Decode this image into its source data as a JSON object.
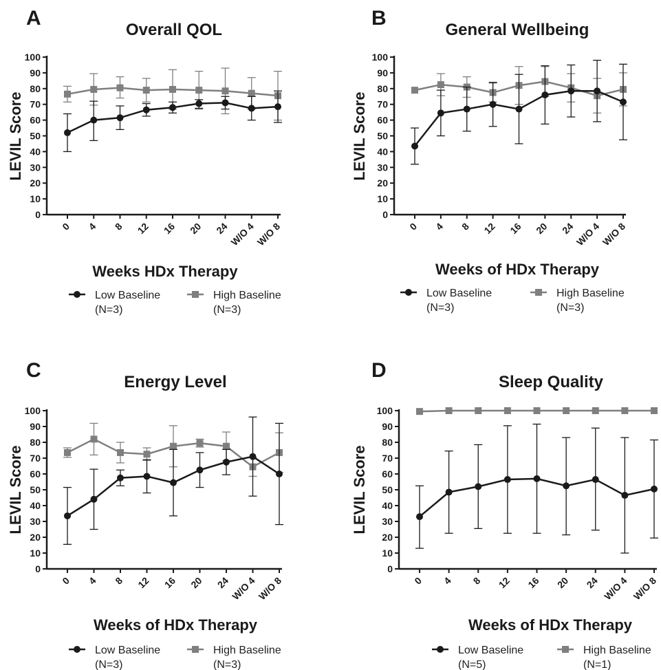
{
  "colors": {
    "low": "#1a1a1a",
    "high": "#7f7f7f"
  },
  "chart_data": [
    {
      "type": "line",
      "panel": "A",
      "title": "Overall QOL",
      "xlabel": "Weeks HDx Therapy",
      "ylabel": "LEVIL Score",
      "categories": [
        "0",
        "4",
        "8",
        "12",
        "16",
        "20",
        "24",
        "W/O 4",
        "W/O 8"
      ],
      "yticks": [
        "0",
        "10",
        "20",
        "30",
        "40",
        "50",
        "60",
        "70",
        "80",
        "90",
        "100"
      ],
      "ylim": [
        0,
        100
      ],
      "legend_position": "bottom",
      "series": [
        {
          "name": "Low Baseline",
          "note": "(N=3)",
          "marker": "circle",
          "values": [
            52,
            60,
            61.5,
            66.5,
            68,
            70.5,
            71,
            67.5,
            68.5
          ],
          "err_low": [
            40,
            47,
            54,
            62.5,
            64.5,
            67.5,
            67,
            60,
            58.5
          ],
          "err_high": [
            64,
            72,
            69,
            70.5,
            71.5,
            73,
            75,
            75,
            78.5
          ]
        },
        {
          "name": "High Baseline",
          "note": "(N=3)",
          "marker": "square",
          "values": [
            76.5,
            79.5,
            80.5,
            79,
            79.5,
            79,
            78.5,
            77,
            75.5
          ],
          "err_low": [
            71.5,
            69.5,
            74,
            71.5,
            67,
            67,
            64,
            67,
            60
          ],
          "err_high": [
            81.5,
            89.5,
            87.5,
            86.5,
            92,
            91,
            93,
            87,
            91
          ]
        }
      ]
    },
    {
      "type": "line",
      "panel": "B",
      "title": "General Wellbeing",
      "xlabel": "Weeks of  HDx Therapy",
      "ylabel": "LEVIL Score",
      "categories": [
        "0",
        "4",
        "8",
        "12",
        "16",
        "20",
        "24",
        "W/O 4",
        "W/O 8"
      ],
      "yticks": [
        "0",
        "10",
        "20",
        "30",
        "40",
        "50",
        "60",
        "70",
        "80",
        "90",
        "100"
      ],
      "ylim": [
        0,
        100
      ],
      "legend_position": "bottom",
      "series": [
        {
          "name": "Low Baseline",
          "note": "(N=3)",
          "marker": "circle",
          "values": [
            43.5,
            64.5,
            67,
            70,
            67,
            76,
            78.5,
            78.5,
            71.5
          ],
          "err_low": [
            32,
            50,
            53,
            56,
            45,
            57.5,
            62,
            59,
            47.5
          ],
          "err_high": [
            55,
            79,
            81,
            84,
            89,
            94.5,
            95,
            98,
            95.5
          ]
        },
        {
          "name": "High Baseline",
          "note": "(N=3)",
          "marker": "square",
          "values": [
            79,
            82.5,
            81,
            77.5,
            82,
            84.5,
            80.5,
            75.5,
            79.5
          ],
          "err_low": [
            79,
            75.5,
            74.5,
            71.5,
            70,
            75,
            71.5,
            64.5,
            69
          ],
          "err_high": [
            79,
            89.5,
            87.5,
            83.5,
            94,
            94,
            89.5,
            86.5,
            90
          ]
        }
      ]
    },
    {
      "type": "line",
      "panel": "C",
      "title": "Energy Level",
      "xlabel": "Weeks of HDx Therapy",
      "ylabel": "LEVIL Score",
      "categories": [
        "0",
        "4",
        "8",
        "12",
        "16",
        "20",
        "24",
        "W/O 4",
        "W/O 8"
      ],
      "yticks": [
        "0",
        "10",
        "20",
        "30",
        "40",
        "50",
        "60",
        "70",
        "80",
        "90",
        "100"
      ],
      "ylim": [
        0,
        100
      ],
      "legend_position": "bottom",
      "series": [
        {
          "name": "Low Baseline",
          "note": "(N=3)",
          "marker": "circle",
          "values": [
            33.5,
            44,
            57.5,
            58.5,
            54.5,
            62.5,
            67.5,
            71,
            60
          ],
          "err_low": [
            15.5,
            25,
            52.5,
            48,
            33.5,
            51.5,
            59.5,
            46,
            28
          ],
          "err_high": [
            51.5,
            63,
            62.5,
            69,
            75.5,
            73.5,
            75.5,
            96,
            92
          ]
        },
        {
          "name": "High Baseline",
          "note": "(N=3)",
          "marker": "square",
          "values": [
            73.5,
            82,
            73.5,
            72.5,
            77.5,
            79.5,
            77.5,
            64.5,
            73.5
          ],
          "err_low": [
            70.5,
            72,
            67,
            68.5,
            64.5,
            77,
            68.5,
            58.5,
            61
          ],
          "err_high": [
            76.5,
            92,
            80,
            76.5,
            90.5,
            82,
            86.5,
            70.5,
            86
          ]
        }
      ]
    },
    {
      "type": "line",
      "panel": "D",
      "title": "Sleep Quality",
      "xlabel": "Weeks of HDx Therapy",
      "ylabel": "LEVIL Score",
      "categories": [
        "0",
        "4",
        "8",
        "12",
        "16",
        "20",
        "24",
        "W/O 4",
        "W/O 8"
      ],
      "yticks": [
        "0",
        "10",
        "20",
        "30",
        "40",
        "50",
        "60",
        "70",
        "80",
        "90",
        "100"
      ],
      "ylim": [
        0,
        100
      ],
      "legend_position": "bottom",
      "series": [
        {
          "name": "Low Baseline",
          "note": "(N=5)",
          "marker": "circle",
          "values": [
            33,
            48.5,
            52,
            56.5,
            57,
            52.5,
            56.5,
            46.5,
            50.5
          ],
          "err_low": [
            13,
            22.5,
            25.5,
            22.5,
            22.5,
            21.5,
            24.5,
            10,
            19.5
          ],
          "err_high": [
            52.5,
            74.5,
            78.5,
            90.5,
            91.5,
            83,
            89,
            83,
            81.5
          ]
        },
        {
          "name": "High Baseline",
          "note": "(N=1)",
          "marker": "square",
          "values": [
            99.5,
            100,
            100,
            100,
            100,
            100,
            100,
            100,
            100
          ],
          "err_low": [
            99.5,
            100,
            100,
            100,
            100,
            100,
            100,
            100,
            100
          ],
          "err_high": [
            99.5,
            100,
            100,
            100,
            100,
            100,
            100,
            100,
            100
          ]
        }
      ]
    }
  ]
}
